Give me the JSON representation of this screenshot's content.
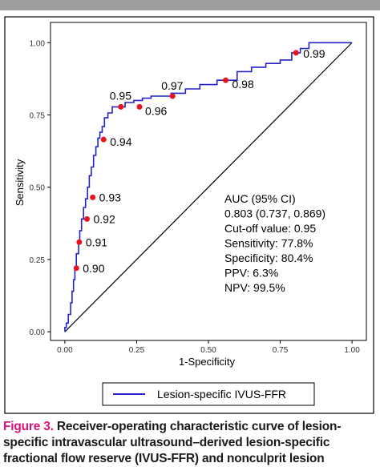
{
  "chart_data": {
    "type": "line",
    "xlabel": "1-Specificity",
    "ylabel": "Sensitivity",
    "xlim": [
      -0.05,
      1.05
    ],
    "ylim": [
      -0.03,
      1.07
    ],
    "ticks": {
      "x": [
        "0.00",
        "0.25",
        "0.50",
        "0.75",
        "1.00"
      ],
      "y": [
        "0.00",
        "0.25",
        "0.50",
        "0.75",
        "1.00"
      ]
    },
    "grid": false,
    "legend_position": "bottom",
    "series": [
      {
        "name": "Lesion-specific IVUS-FFR",
        "color": "#2323c8",
        "x": [
          0.0,
          0.0,
          0.005,
          0.005,
          0.012,
          0.012,
          0.02,
          0.02,
          0.025,
          0.025,
          0.03,
          0.03,
          0.035,
          0.035,
          0.04,
          0.04,
          0.048,
          0.048,
          0.052,
          0.052,
          0.058,
          0.058,
          0.065,
          0.065,
          0.072,
          0.072,
          0.079,
          0.079,
          0.085,
          0.085,
          0.092,
          0.092,
          0.1,
          0.1,
          0.108,
          0.108,
          0.115,
          0.115,
          0.122,
          0.122,
          0.13,
          0.13,
          0.138,
          0.138,
          0.15,
          0.15,
          0.165,
          0.165,
          0.178,
          0.178,
          0.19,
          0.19,
          0.21,
          0.21,
          0.24,
          0.24,
          0.27,
          0.27,
          0.3,
          0.3,
          0.33,
          0.33,
          0.37,
          0.37,
          0.42,
          0.42,
          0.47,
          0.47,
          0.53,
          0.53,
          0.6,
          0.6,
          0.65,
          0.65,
          0.7,
          0.7,
          0.75,
          0.75,
          0.79,
          0.79,
          0.82,
          0.82,
          0.85,
          0.85,
          1.0
        ],
        "y": [
          0.0,
          0.015,
          0.015,
          0.03,
          0.03,
          0.06,
          0.06,
          0.1,
          0.1,
          0.14,
          0.14,
          0.18,
          0.18,
          0.22,
          0.22,
          0.27,
          0.27,
          0.31,
          0.31,
          0.35,
          0.35,
          0.39,
          0.39,
          0.43,
          0.43,
          0.46,
          0.46,
          0.5,
          0.5,
          0.54,
          0.54,
          0.57,
          0.57,
          0.61,
          0.61,
          0.64,
          0.64,
          0.67,
          0.67,
          0.69,
          0.69,
          0.71,
          0.71,
          0.74,
          0.74,
          0.757,
          0.757,
          0.778,
          0.778,
          0.778,
          0.778,
          0.778,
          0.778,
          0.793,
          0.793,
          0.8,
          0.8,
          0.808,
          0.808,
          0.815,
          0.815,
          0.815,
          0.815,
          0.825,
          0.825,
          0.84,
          0.84,
          0.855,
          0.855,
          0.87,
          0.87,
          0.9,
          0.9,
          0.915,
          0.915,
          0.928,
          0.928,
          0.94,
          0.94,
          0.965,
          0.965,
          0.98,
          0.98,
          1.0,
          1.0
        ]
      }
    ],
    "cutoff_points": [
      {
        "label": "0.90",
        "x": 0.04,
        "y": 0.22
      },
      {
        "label": "0.91",
        "x": 0.05,
        "y": 0.31
      },
      {
        "label": "0.92",
        "x": 0.077,
        "y": 0.39
      },
      {
        "label": "0.93",
        "x": 0.097,
        "y": 0.465
      },
      {
        "label": "0.94",
        "x": 0.135,
        "y": 0.665
      },
      {
        "label": "0.95",
        "x": 0.195,
        "y": 0.778
      },
      {
        "label": "0.96",
        "x": 0.26,
        "y": 0.778
      },
      {
        "label": "0.97",
        "x": 0.375,
        "y": 0.815
      },
      {
        "label": "0.98",
        "x": 0.56,
        "y": 0.87
      },
      {
        "label": "0.99",
        "x": 0.805,
        "y": 0.965
      }
    ],
    "cutoff_color": "#e8141e",
    "reference_line": {
      "x": [
        0,
        1
      ],
      "y": [
        0,
        1
      ],
      "color": "#000000"
    },
    "annotation": [
      "AUC (95% CI)",
      "0.803 (0.737, 0.869)",
      "Cut-off value: 0.95",
      "Sensitivity: 77.8%",
      "Specificity: 80.4%",
      "PPV: 6.3%",
      "NPV: 99.5%"
    ]
  },
  "caption": {
    "lead": "Figure 3.",
    "text": " Receiver-operating characteristic curve of lesion-specific intravascular ultrasound–derived lesion-specific fractional flow reserve (IVUS-FFR) and nonculprit lesion"
  }
}
